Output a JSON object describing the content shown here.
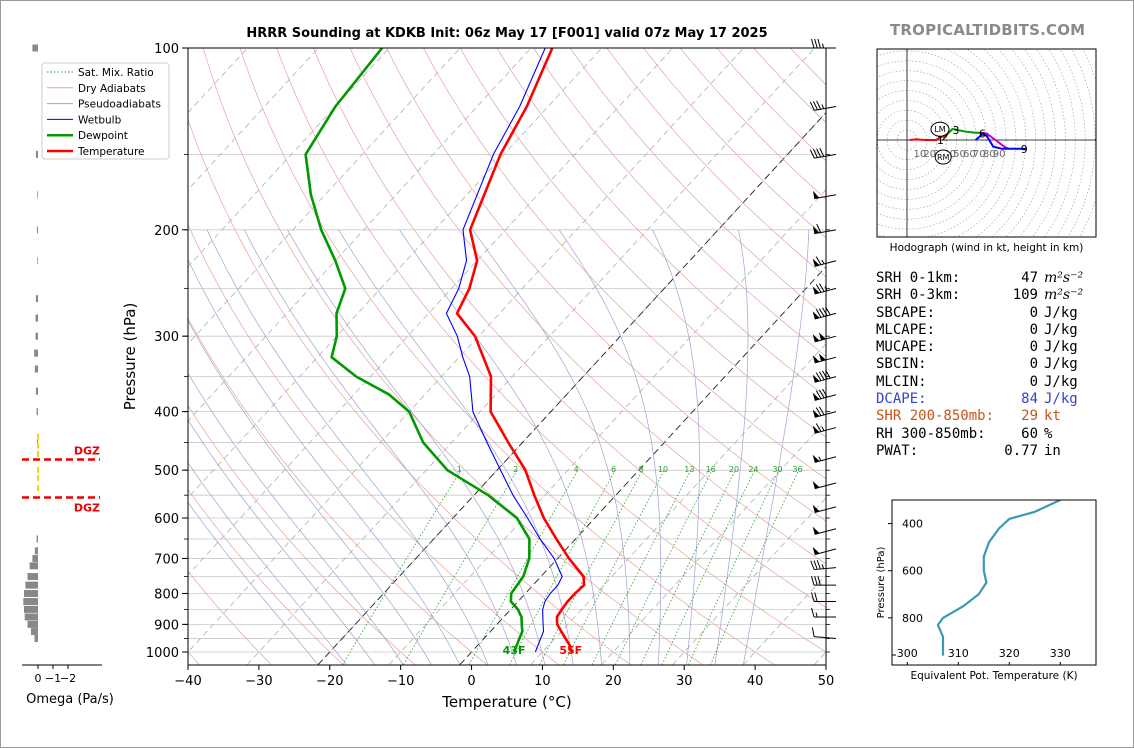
{
  "title": "HRRR Sounding at KDKB Init: 06z May 17 [F001] valid 07z May 17 2025",
  "brand": "TROPICALTIDBITS.COM",
  "chart_data": {
    "type": "skew-t",
    "xlabel": "Temperature (°C)",
    "ylabel": "Pressure (hPa)",
    "xlim": [
      -40,
      50
    ],
    "ylim": [
      1050,
      100
    ],
    "x_ticks": [
      -40,
      -30,
      -20,
      -10,
      0,
      10,
      20,
      30,
      40,
      50
    ],
    "x_tick_labels": [
      "−40",
      "−30",
      "−20",
      "−10",
      "0",
      "10",
      "20",
      "30",
      "40",
      "50"
    ],
    "y_ticks": [
      100,
      200,
      300,
      400,
      500,
      600,
      700,
      800,
      900,
      1000
    ],
    "legend": {
      "placement": "top-left",
      "entries": [
        {
          "label": "Sat. Mix. Ratio",
          "color": "#2ca02c",
          "style": "dotted"
        },
        {
          "label": "Dry Adiabats",
          "color": "#e8a0a0",
          "style": "solid"
        },
        {
          "label": "Pseudoadiabats",
          "color": "#a0a0d8",
          "style": "solid"
        },
        {
          "label": "Wetbulb",
          "color": "#0000ff",
          "style": "solid"
        },
        {
          "label": "Dewpoint",
          "color": "#009900",
          "style": "solid"
        },
        {
          "label": "Temperature",
          "color": "#ff0000",
          "style": "solid"
        }
      ]
    },
    "mixing_ratio_labels": [
      "1",
      "2",
      "4",
      "6",
      "8",
      "10",
      "13",
      "16",
      "20",
      "24",
      "30",
      "36"
    ],
    "mixing_ratio_values": [
      1,
      2,
      4,
      6,
      8,
      10,
      13,
      16,
      20,
      24,
      30,
      36
    ],
    "temperature": [
      {
        "p": 1000,
        "t": 14
      },
      {
        "p": 975,
        "t": 13
      },
      {
        "p": 950,
        "t": 11.5
      },
      {
        "p": 925,
        "t": 10
      },
      {
        "p": 900,
        "t": 8.5
      },
      {
        "p": 875,
        "t": 7.5
      },
      {
        "p": 850,
        "t": 7.2
      },
      {
        "p": 825,
        "t": 7
      },
      {
        "p": 800,
        "t": 7
      },
      {
        "p": 775,
        "t": 7.2
      },
      {
        "p": 750,
        "t": 6
      },
      {
        "p": 700,
        "t": 1.6
      },
      {
        "p": 650,
        "t": -2.7
      },
      {
        "p": 600,
        "t": -7.2
      },
      {
        "p": 550,
        "t": -11.5
      },
      {
        "p": 500,
        "t": -16
      },
      {
        "p": 450,
        "t": -22
      },
      {
        "p": 400,
        "t": -28.5
      },
      {
        "p": 350,
        "t": -33
      },
      {
        "p": 300,
        "t": -40.5
      },
      {
        "p": 275,
        "t": -46
      },
      {
        "p": 250,
        "t": -47.5
      },
      {
        "p": 225,
        "t": -50
      },
      {
        "p": 200,
        "t": -55
      },
      {
        "p": 150,
        "t": -60.5
      },
      {
        "p": 125,
        "t": -63
      },
      {
        "p": 100,
        "t": -67
      }
    ],
    "dewpoint": [
      {
        "p": 1000,
        "t": 6
      },
      {
        "p": 975,
        "t": 5.5
      },
      {
        "p": 950,
        "t": 5
      },
      {
        "p": 925,
        "t": 4.5
      },
      {
        "p": 900,
        "t": 3.5
      },
      {
        "p": 875,
        "t": 2.5
      },
      {
        "p": 850,
        "t": 1
      },
      {
        "p": 825,
        "t": -1
      },
      {
        "p": 800,
        "t": -2
      },
      {
        "p": 750,
        "t": -2.5
      },
      {
        "p": 700,
        "t": -4
      },
      {
        "p": 650,
        "t": -6.5
      },
      {
        "p": 600,
        "t": -11
      },
      {
        "p": 550,
        "t": -18
      },
      {
        "p": 500,
        "t": -27
      },
      {
        "p": 450,
        "t": -34
      },
      {
        "p": 400,
        "t": -40
      },
      {
        "p": 375,
        "t": -45
      },
      {
        "p": 350,
        "t": -52
      },
      {
        "p": 325,
        "t": -58
      },
      {
        "p": 300,
        "t": -60
      },
      {
        "p": 275,
        "t": -63
      },
      {
        "p": 250,
        "t": -65
      },
      {
        "p": 225,
        "t": -70
      },
      {
        "p": 200,
        "t": -76
      },
      {
        "p": 175,
        "t": -82
      },
      {
        "p": 150,
        "t": -88
      },
      {
        "p": 125,
        "t": -90
      },
      {
        "p": 100,
        "t": -91
      }
    ],
    "wetbulb": [
      {
        "p": 1000,
        "t": 9
      },
      {
        "p": 975,
        "t": 8.5
      },
      {
        "p": 950,
        "t": 8
      },
      {
        "p": 925,
        "t": 7.5
      },
      {
        "p": 900,
        "t": 6.5
      },
      {
        "p": 875,
        "t": 5.5
      },
      {
        "p": 850,
        "t": 4.5
      },
      {
        "p": 825,
        "t": 3.8
      },
      {
        "p": 800,
        "t": 3.5
      },
      {
        "p": 775,
        "t": 3.5
      },
      {
        "p": 750,
        "t": 3
      },
      {
        "p": 700,
        "t": -0.5
      },
      {
        "p": 650,
        "t": -5
      },
      {
        "p": 600,
        "t": -9.5
      },
      {
        "p": 550,
        "t": -14.5
      },
      {
        "p": 500,
        "t": -19.5
      },
      {
        "p": 450,
        "t": -25
      },
      {
        "p": 400,
        "t": -31
      },
      {
        "p": 350,
        "t": -36
      },
      {
        "p": 325,
        "t": -39.5
      },
      {
        "p": 300,
        "t": -43
      },
      {
        "p": 275,
        "t": -47.5
      },
      {
        "p": 250,
        "t": -49
      },
      {
        "p": 225,
        "t": -51.5
      },
      {
        "p": 200,
        "t": -56
      },
      {
        "p": 150,
        "t": -61.5
      },
      {
        "p": 125,
        "t": -64
      },
      {
        "p": 100,
        "t": -68
      }
    ],
    "surface_labels": {
      "temperature": "55F",
      "dewpoint": "43F"
    },
    "wind_barbs": [
      {
        "p": 100,
        "spd": 35,
        "dir": 270
      },
      {
        "p": 125,
        "spd": 35,
        "dir": 260
      },
      {
        "p": 150,
        "spd": 40,
        "dir": 260
      },
      {
        "p": 175,
        "spd": 50,
        "dir": 260
      },
      {
        "p": 200,
        "spd": 60,
        "dir": 260
      },
      {
        "p": 225,
        "spd": 65,
        "dir": 255
      },
      {
        "p": 250,
        "spd": 75,
        "dir": 255
      },
      {
        "p": 275,
        "spd": 90,
        "dir": 255
      },
      {
        "p": 300,
        "spd": 100,
        "dir": 255
      },
      {
        "p": 325,
        "spd": 100,
        "dir": 255
      },
      {
        "p": 350,
        "spd": 90,
        "dir": 255
      },
      {
        "p": 375,
        "spd": 80,
        "dir": 255
      },
      {
        "p": 400,
        "spd": 70,
        "dir": 255
      },
      {
        "p": 425,
        "spd": 65,
        "dir": 255
      },
      {
        "p": 475,
        "spd": 55,
        "dir": 255
      },
      {
        "p": 525,
        "spd": 50,
        "dir": 255
      },
      {
        "p": 575,
        "spd": 50,
        "dir": 255
      },
      {
        "p": 625,
        "spd": 50,
        "dir": 255
      },
      {
        "p": 675,
        "spd": 50,
        "dir": 255
      },
      {
        "p": 725,
        "spd": 35,
        "dir": 265
      },
      {
        "p": 775,
        "spd": 30,
        "dir": 270
      },
      {
        "p": 825,
        "spd": 20,
        "dir": 270
      },
      {
        "p": 875,
        "spd": 15,
        "dir": 270
      },
      {
        "p": 950,
        "spd": 10,
        "dir": 275
      }
    ],
    "omega": {
      "xlabel": "Omega (Pa/s)",
      "ticks": [
        0,
        -1,
        -2
      ],
      "tick_labels": [
        "0",
        "−1",
        "−2"
      ],
      "dgz_top_hpa": 480,
      "dgz_bottom_hpa": 555,
      "dgz_label": "DGZ",
      "values": [
        {
          "p": 100,
          "w": 0.8
        },
        {
          "p": 150,
          "w": 0.3
        },
        {
          "p": 175,
          "w": 0.1
        },
        {
          "p": 200,
          "w": 0.15
        },
        {
          "p": 225,
          "w": 0.1
        },
        {
          "p": 260,
          "w": 0.3
        },
        {
          "p": 280,
          "w": 0.35
        },
        {
          "p": 300,
          "w": 0.35
        },
        {
          "p": 320,
          "w": 0.55
        },
        {
          "p": 340,
          "w": 0.45
        },
        {
          "p": 370,
          "w": 0.3
        },
        {
          "p": 400,
          "w": 0.2
        },
        {
          "p": 450,
          "w": 0.15
        },
        {
          "p": 500,
          "w": 0.1
        },
        {
          "p": 650,
          "w": 0.2
        },
        {
          "p": 680,
          "w": 0.45
        },
        {
          "p": 700,
          "w": 0.8
        },
        {
          "p": 720,
          "w": 1.2
        },
        {
          "p": 750,
          "w": 1.5
        },
        {
          "p": 775,
          "w": 1.8
        },
        {
          "p": 800,
          "w": 2.0
        },
        {
          "p": 825,
          "w": 2.1
        },
        {
          "p": 850,
          "w": 2.0
        },
        {
          "p": 875,
          "w": 1.9
        },
        {
          "p": 900,
          "w": 1.5
        },
        {
          "p": 925,
          "w": 1.0
        },
        {
          "p": 950,
          "w": 0.5
        }
      ]
    },
    "hodograph": {
      "caption": "Hodograph (wind in kt, height in km)",
      "ring_labels": [
        "10",
        "20",
        "30",
        "40",
        "50",
        "60",
        "70",
        "80",
        "90"
      ],
      "lm_label": "LM",
      "rm_label": "RM",
      "height_labels": [
        "1",
        "2",
        "3",
        "6",
        "9"
      ],
      "segments": [
        {
          "color": "#ff0000",
          "points": [
            [
              -34,
              0
            ],
            [
              -28,
              0.5
            ],
            [
              -20,
              0
            ],
            [
              -10,
              0
            ],
            [
              -5,
              3
            ],
            [
              -2,
              3
            ],
            [
              0,
              5
            ]
          ]
        },
        {
          "color": "#009900",
          "points": [
            [
              0,
              5
            ],
            [
              5,
              10
            ],
            [
              10,
              9
            ],
            [
              18,
              7.5
            ],
            [
              26,
              6.5
            ],
            [
              30,
              6.5
            ]
          ]
        },
        {
          "color": "#cc00cc",
          "points": [
            [
              30,
              6.5
            ],
            [
              36,
              6
            ],
            [
              44,
              0
            ],
            [
              52,
              -6
            ],
            [
              56,
              -8
            ]
          ]
        },
        {
          "color": "#0000ff",
          "points": [
            [
              26,
              0
            ],
            [
              32,
              5
            ],
            [
              36,
              4
            ],
            [
              42,
              -6
            ],
            [
              50,
              -8
            ],
            [
              72,
              -8
            ]
          ]
        }
      ],
      "height_points": [
        [
          -6,
          0
        ],
        [
          0,
          3
        ],
        [
          10,
          9
        ],
        [
          34,
          6
        ],
        [
          72,
          -8
        ]
      ],
      "lm_position": [
        0,
        18
      ],
      "rm_position": [
        2,
        -10
      ]
    },
    "theta_e": {
      "xlabel": "Equivalent Pot. Temperature (K)",
      "ylabel": "Pressure (hPa)",
      "xlim": [
        297,
        337
      ],
      "ylim": [
        1000,
        300
      ],
      "x_ticks": [
        300,
        310,
        320,
        330
      ],
      "y_ticks": [
        400,
        600,
        800
      ],
      "color": "#3a9ab0",
      "values": [
        {
          "p": 300,
          "th": 330
        },
        {
          "p": 350,
          "th": 325
        },
        {
          "p": 380,
          "th": 320
        },
        {
          "p": 420,
          "th": 318
        },
        {
          "p": 480,
          "th": 316
        },
        {
          "p": 540,
          "th": 315
        },
        {
          "p": 600,
          "th": 315
        },
        {
          "p": 650,
          "th": 315.5
        },
        {
          "p": 700,
          "th": 314
        },
        {
          "p": 750,
          "th": 311
        },
        {
          "p": 800,
          "th": 307
        },
        {
          "p": 830,
          "th": 306
        },
        {
          "p": 880,
          "th": 307
        },
        {
          "p": 930,
          "th": 307
        },
        {
          "p": 960,
          "th": 307
        }
      ]
    }
  },
  "parameters": [
    {
      "label": "SRH 0-1km:",
      "value": "47",
      "unit": "m²s⁻²",
      "color": "#000000"
    },
    {
      "label": "SRH 0-3km:",
      "value": "109",
      "unit": "m²s⁻²",
      "color": "#000000"
    },
    {
      "label": "SBCAPE:",
      "value": "0",
      "unit": "J/kg",
      "color": "#000000"
    },
    {
      "label": "MLCAPE:",
      "value": "0",
      "unit": "J/kg",
      "color": "#000000"
    },
    {
      "label": "MUCAPE:",
      "value": "0",
      "unit": "J/kg",
      "color": "#000000"
    },
    {
      "label": "SBCIN:",
      "value": "0",
      "unit": "J/kg",
      "color": "#000000"
    },
    {
      "label": "MLCIN:",
      "value": "0",
      "unit": "J/kg",
      "color": "#000000"
    },
    {
      "label": "DCAPE:",
      "value": "84",
      "unit": "J/kg",
      "color": "#3344cc"
    },
    {
      "label": "SHR 200-850mb:",
      "value": "29",
      "unit": "kt",
      "color": "#c8541a"
    },
    {
      "label": "RH 300-850mb:",
      "value": "60",
      "unit": "%",
      "color": "#000000"
    },
    {
      "label": "PWAT:",
      "value": "0.77",
      "unit": "in",
      "color": "#000000"
    }
  ]
}
